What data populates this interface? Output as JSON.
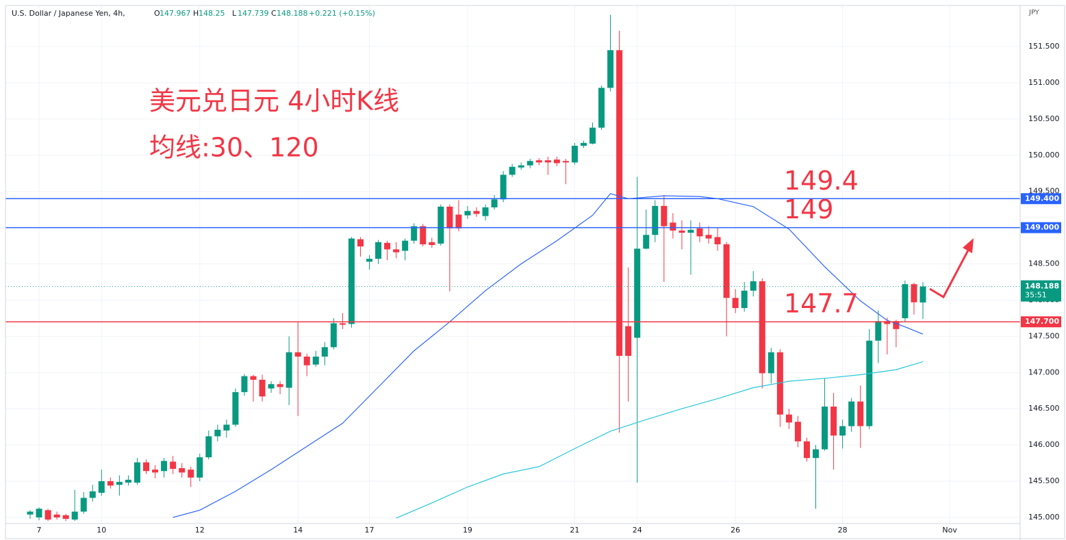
{
  "chart_data": {
    "type": "candlestick",
    "symbol": "U.S. Dollar / Japanese Yen, 4h,",
    "ohlc_keys": [
      "O",
      "H",
      "L",
      "C"
    ],
    "change": "+0.221 (+0.15%)",
    "currency": "JPY",
    "title": "美元兑日元 4小时K线",
    "subtitle": "均线:30、120",
    "up_color": "#089981",
    "down_color": "#f23645",
    "open": [
      145.04,
      145.0,
      145.1,
      145.04,
      145.03,
      144.97,
      145.08,
      145.27,
      145.34,
      145.5,
      145.45,
      145.48,
      145.48,
      145.76,
      145.66,
      145.64,
      145.77,
      145.68,
      145.66,
      145.55,
      145.83,
      146.12,
      146.2,
      146.28,
      146.73,
      146.95,
      146.9,
      146.78,
      146.84,
      146.79,
      147.28,
      147.22,
      147.11,
      147.22,
      147.35,
      147.68,
      147.67,
      148.84,
      148.53,
      148.57,
      148.79,
      148.7,
      148.68,
      148.82,
      149.02,
      148.8,
      148.78,
      149.29,
      149.18,
      149.17,
      149.23,
      149.16,
      149.28,
      149.39,
      149.73,
      149.83,
      149.86,
      149.93,
      149.93,
      149.94,
      149.92,
      149.9,
      150.13,
      150.16,
      150.38,
      150.93,
      151.45,
      147.64,
      147.48,
      148.71,
      148.9,
      149.3,
      149.07,
      148.96,
      148.93,
      148.99,
      148.9,
      148.87,
      148.77,
      148.03,
      147.89,
      148.13,
      148.26,
      146.99,
      147.28,
      146.42,
      146.32,
      146.05,
      145.82,
      145.94,
      146.53,
      146.13,
      146.26,
      146.6,
      146.26,
      147.44,
      147.71,
      147.71,
      147.75,
      148.22,
      147.967
    ],
    "high": [
      145.1,
      145.14,
      145.12,
      145.08,
      145.05,
      145.38,
      145.35,
      145.45,
      145.66,
      145.55,
      145.58,
      145.58,
      145.82,
      145.8,
      145.72,
      145.82,
      145.85,
      145.75,
      145.7,
      145.88,
      146.2,
      146.28,
      146.35,
      146.78,
      146.98,
      146.97,
      146.97,
      146.88,
      146.88,
      147.5,
      147.7,
      147.26,
      147.3,
      147.42,
      147.75,
      147.82,
      148.87,
      148.87,
      148.62,
      148.83,
      148.82,
      148.8,
      148.85,
      149.06,
      149.05,
      148.86,
      149.32,
      149.32,
      149.38,
      149.3,
      149.28,
      149.32,
      149.45,
      149.78,
      149.88,
      149.9,
      149.95,
      149.96,
      149.98,
      149.98,
      149.95,
      150.17,
      150.2,
      150.45,
      150.96,
      151.94,
      151.72,
      148.45,
      149.7,
      149.25,
      149.38,
      149.45,
      149.2,
      149.1,
      149.1,
      149.07,
      149.02,
      149.0,
      148.8,
      148.15,
      148.25,
      148.4,
      148.3,
      147.34,
      147.32,
      146.5,
      146.4,
      146.1,
      146.0,
      146.92,
      146.72,
      146.35,
      146.65,
      146.82,
      147.6,
      147.86,
      147.76,
      147.73,
      148.27,
      148.24,
      148.25
    ],
    "low": [
      144.98,
      144.96,
      144.95,
      144.97,
      144.95,
      144.95,
      145.05,
      145.22,
      145.3,
      145.4,
      145.3,
      145.44,
      145.45,
      145.6,
      145.54,
      145.55,
      145.6,
      145.55,
      145.42,
      145.5,
      145.8,
      146.05,
      146.1,
      146.25,
      146.68,
      146.6,
      146.6,
      146.72,
      146.7,
      146.55,
      146.4,
      146.95,
      147.08,
      147.1,
      147.32,
      147.6,
      147.62,
      148.6,
      148.42,
      148.5,
      148.55,
      148.58,
      148.55,
      148.78,
      148.74,
      148.72,
      148.75,
      148.12,
      148.95,
      149.12,
      149.15,
      149.1,
      149.25,
      149.35,
      149.7,
      149.8,
      149.82,
      149.86,
      149.73,
      149.85,
      149.6,
      149.87,
      150.1,
      150.15,
      150.35,
      150.88,
      146.17,
      146.6,
      145.48,
      148.7,
      148.8,
      148.25,
      148.85,
      148.7,
      148.35,
      148.8,
      148.78,
      148.68,
      147.5,
      147.82,
      147.84,
      148.05,
      146.78,
      146.85,
      146.25,
      146.22,
      145.97,
      145.77,
      145.12,
      145.92,
      145.66,
      145.95,
      146.18,
      145.96,
      146.22,
      147.13,
      147.25,
      147.35,
      147.7,
      147.8,
      147.739
    ],
    "close": [
      145.08,
      145.12,
      144.97,
      145.0,
      144.98,
      145.08,
      145.27,
      145.36,
      145.5,
      145.44,
      145.49,
      145.52,
      145.76,
      145.64,
      145.62,
      145.78,
      145.67,
      145.62,
      145.55,
      145.83,
      146.12,
      146.21,
      146.28,
      146.73,
      146.95,
      146.9,
      146.67,
      146.84,
      146.8,
      147.28,
      147.22,
      147.1,
      147.22,
      147.35,
      147.68,
      147.66,
      148.85,
      148.74,
      148.57,
      148.8,
      148.7,
      148.66,
      148.82,
      149.02,
      148.77,
      148.76,
      149.29,
      148.99,
      148.99,
      149.23,
      149.19,
      149.28,
      149.39,
      149.73,
      149.84,
      149.86,
      149.92,
      149.9,
      149.9,
      149.89,
      149.9,
      150.13,
      150.17,
      150.38,
      150.93,
      151.45,
      147.23,
      147.23,
      148.71,
      148.9,
      149.3,
      149.02,
      148.96,
      148.93,
      148.97,
      148.88,
      148.85,
      148.77,
      148.03,
      147.89,
      148.13,
      148.26,
      146.99,
      147.28,
      146.42,
      146.31,
      146.05,
      145.82,
      145.94,
      146.53,
      146.13,
      146.26,
      146.6,
      146.26,
      147.44,
      147.71,
      147.67,
      147.6,
      148.22,
      147.97,
      148.188
    ],
    "series": [
      {
        "color": "#2962ff",
        "x": [
          16,
          19,
          23,
          27,
          31,
          35,
          39,
          43,
          47,
          51,
          55,
          59,
          63,
          65,
          67,
          71,
          75,
          77,
          81,
          85,
          89,
          93,
          96,
          98,
          100
        ],
        "values": [
          145.0,
          145.1,
          145.36,
          145.66,
          145.98,
          146.3,
          146.8,
          147.3,
          147.7,
          148.13,
          148.5,
          148.82,
          149.17,
          149.47,
          149.4,
          149.44,
          149.43,
          149.4,
          149.29,
          148.98,
          148.46,
          147.99,
          147.72,
          147.63,
          147.53
        ]
      },
      {
        "color": "#26c6da",
        "x": [
          41,
          45,
          49,
          53,
          57,
          61,
          65,
          69,
          73,
          77,
          81,
          85,
          89,
          93,
          97,
          100
        ],
        "values": [
          144.99,
          145.2,
          145.42,
          145.6,
          145.7,
          145.95,
          146.19,
          146.35,
          146.5,
          146.64,
          146.79,
          146.88,
          146.92,
          146.97,
          147.04,
          147.15
        ]
      }
    ],
    "hlines": [
      {
        "value": 149.4,
        "label": "149.400",
        "annotation": "149.4",
        "color": "#2962ff"
      },
      {
        "value": 149.0,
        "label": "149.000",
        "annotation": "149",
        "color": "#2962ff"
      },
      {
        "value": 147.7,
        "label": "147.700",
        "annotation": "147.7",
        "color": "#f23645"
      }
    ],
    "last_price": {
      "value": 148.188,
      "label": "148.188",
      "countdown": "35:51"
    },
    "xlim": [
      -2.76,
      110.89
    ],
    "xticks": [
      {
        "value": 1,
        "label": "7"
      },
      {
        "value": 8,
        "label": "10"
      },
      {
        "value": 19,
        "label": "12"
      },
      {
        "value": 30,
        "label": "14"
      },
      {
        "value": 38,
        "label": "17"
      },
      {
        "value": 49,
        "label": "19"
      },
      {
        "value": 61,
        "label": "21"
      },
      {
        "value": 68,
        "label": "24"
      },
      {
        "value": 79,
        "label": "26"
      },
      {
        "value": 91,
        "label": "28"
      },
      {
        "value": 103,
        "label": "Nov"
      }
    ],
    "ylim": [
      144.915,
      152.067
    ],
    "yticks": [
      {
        "value": 145.0,
        "label": "145.000"
      },
      {
        "value": 145.5,
        "label": "145.500"
      },
      {
        "value": 146.0,
        "label": "146.000"
      },
      {
        "value": 146.5,
        "label": "146.500"
      },
      {
        "value": 147.0,
        "label": "147.000"
      },
      {
        "value": 147.5,
        "label": "147.500"
      },
      {
        "value": 148.0,
        "label": "148.000"
      },
      {
        "value": 148.5,
        "label": "148.500"
      },
      {
        "value": 149.0,
        "label": "149.000"
      },
      {
        "value": 149.5,
        "label": "149.500"
      },
      {
        "value": 150.0,
        "label": "150.000"
      },
      {
        "value": 150.5,
        "label": "150.500"
      },
      {
        "value": 151.0,
        "label": "151.000"
      },
      {
        "value": 151.5,
        "label": "151.500"
      }
    ],
    "grid": true
  }
}
